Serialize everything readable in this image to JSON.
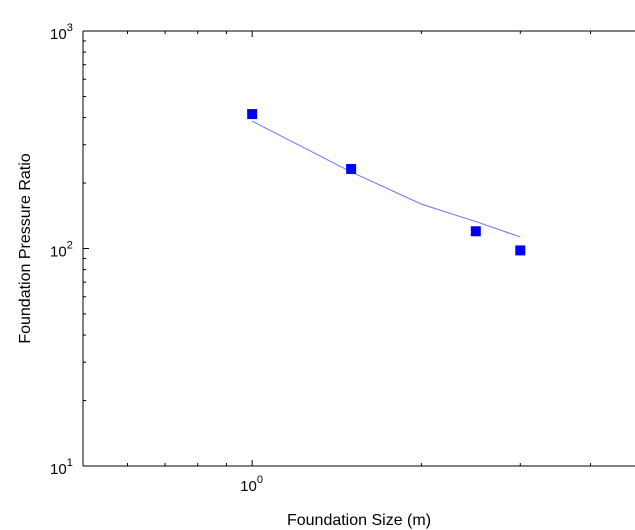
{
  "chart_data": {
    "type": "scatter",
    "title": "",
    "xlabel": "Foundation Size (m)",
    "ylabel": "Foundation Pressure Ratio",
    "x_scale": "log",
    "y_scale": "log",
    "xlim": [
      0.5,
      4.8
    ],
    "ylim": [
      10,
      1000
    ],
    "x_tick_labels": [
      {
        "base": "10",
        "exp": "0",
        "value": 1
      }
    ],
    "y_tick_labels": [
      {
        "base": "10",
        "exp": "1",
        "value": 10
      },
      {
        "base": "10",
        "exp": "2",
        "value": 100
      },
      {
        "base": "10",
        "exp": "3",
        "value": 1000
      }
    ],
    "grid": false,
    "legend": "none",
    "series": [
      {
        "type": "scatter",
        "marker": "square",
        "color": "#0000ff",
        "x": [
          1.0,
          1.5,
          2.5,
          3.0
        ],
        "y": [
          415,
          232,
          120,
          98
        ]
      },
      {
        "type": "line",
        "color": "#7070ff",
        "x": [
          1.0,
          1.5,
          2.0,
          2.5,
          3.0
        ],
        "y": [
          385,
          225,
          160,
          133,
          113
        ]
      }
    ]
  }
}
